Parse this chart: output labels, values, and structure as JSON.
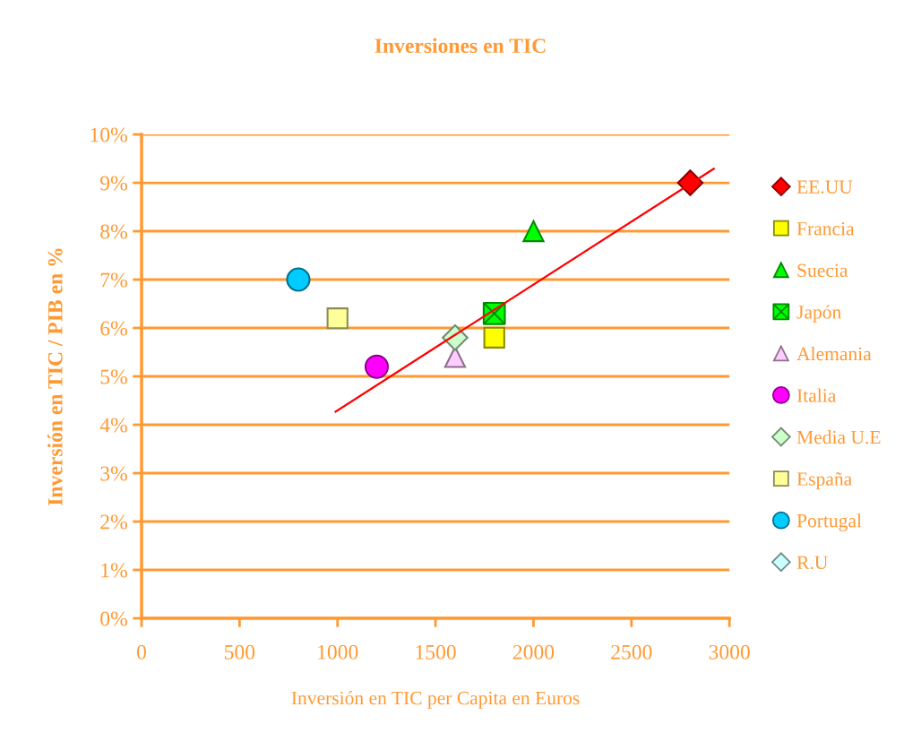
{
  "chart_data": {
    "type": "scatter",
    "title": "Inversiones en TIC",
    "xlabel": "Inversión en TIC per Capita en Euros",
    "ylabel": "Inversión en TIC / PIB en %",
    "xlim": [
      0,
      3000
    ],
    "xticks": [
      0,
      500,
      1000,
      1500,
      2000,
      2500,
      3000
    ],
    "ylim": [
      0,
      10
    ],
    "yticks": [
      {
        "value": 0,
        "label": "0%"
      },
      {
        "value": 1,
        "label": "1%"
      },
      {
        "value": 2,
        "label": "2%"
      },
      {
        "value": 3,
        "label": "3%"
      },
      {
        "value": 4,
        "label": "4%"
      },
      {
        "value": 5,
        "label": "5%"
      },
      {
        "value": 6,
        "label": "6%"
      },
      {
        "value": 7,
        "label": "7%"
      },
      {
        "value": 8,
        "label": "8%"
      },
      {
        "value": 9,
        "label": "9%"
      },
      {
        "value": 10,
        "label": "10%"
      }
    ],
    "grid": "y",
    "legend": "right",
    "series": [
      {
        "name": "EE.UU",
        "color": "#ff0000",
        "marker": "diamond",
        "x": [
          2800
        ],
        "values": [
          9.0
        ]
      },
      {
        "name": "Francia",
        "color": "#ffff00",
        "marker": "square",
        "x": [
          1800
        ],
        "values": [
          5.8
        ]
      },
      {
        "name": "Suecia",
        "color": "#00ff00",
        "marker": "triangle",
        "x": [
          2000
        ],
        "values": [
          8.0
        ]
      },
      {
        "name": "Japón",
        "color": "#00ff00",
        "marker": "cross",
        "x": [
          1800
        ],
        "values": [
          6.3
        ]
      },
      {
        "name": "Alemania",
        "color": "#ffccff",
        "marker": "triangle",
        "x": [
          1600
        ],
        "values": [
          5.4
        ]
      },
      {
        "name": "Italia",
        "color": "#ff00ff",
        "marker": "circle",
        "x": [
          1200
        ],
        "values": [
          5.2
        ]
      },
      {
        "name": "Media U.E",
        "color": "#ccffcc",
        "marker": "diamond",
        "x": [
          1600
        ],
        "values": [
          5.8
        ]
      },
      {
        "name": "España",
        "color": "#ffff99",
        "marker": "square",
        "x": [
          1000
        ],
        "values": [
          6.2
        ]
      },
      {
        "name": "Portugal",
        "color": "#00ccff",
        "marker": "circle",
        "x": [
          800
        ],
        "values": [
          7.0
        ]
      },
      {
        "name": "R.U",
        "color": "#ccffff",
        "marker": "diamond",
        "x": [
          null
        ],
        "values": [
          null
        ]
      },
      {
        "type": "line",
        "color": "#ff0000",
        "marker": "none",
        "line_style": "solid",
        "x": [
          990,
          2920
        ],
        "values": [
          4.27,
          9.29
        ]
      }
    ]
  }
}
